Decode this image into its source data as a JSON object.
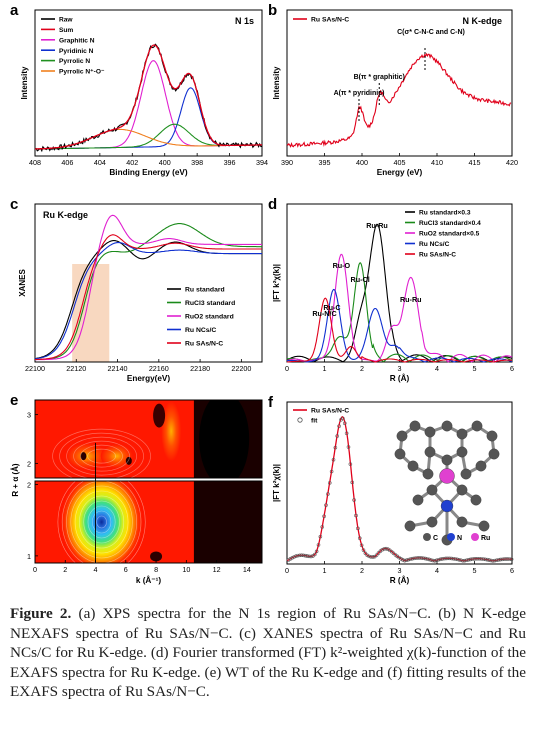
{
  "caption": {
    "label": "Figure 2.",
    "text": "(a) XPS spectra for the N 1s region of Ru SAs/N−C. (b) N K-edge NEXAFS spectra of Ru SAs/N−C. (c) XANES spectra of Ru SAs/N−C and Ru NCs/C for Ru K-edge. (d) Fourier transformed (FT) k²-weighted χ(k)-function of the EXAFS spectra for Ru K-edge. (e) WT of the Ru K-edge and (f) fitting results of the EXAFS spectra of Ru SAs/N−C."
  },
  "chart_data": [
    {
      "panel": "a",
      "type": "line",
      "title": "N 1s",
      "xlabel": "Binding Energy (eV)",
      "ylabel": "Intensity",
      "xlim": [
        408,
        394
      ],
      "xticks": [
        408,
        406,
        404,
        402,
        400,
        398,
        396,
        394
      ],
      "legend_position": "top-left",
      "series": [
        {
          "name": "Raw",
          "color": "#000000"
        },
        {
          "name": "Sum",
          "color": "#e0001a"
        },
        {
          "name": "Graphitic N",
          "color": "#e020d0",
          "center": 400.7
        },
        {
          "name": "Pyridinic N",
          "color": "#1030d0",
          "center": 398.4
        },
        {
          "name": "Pyrrolic N",
          "color": "#209020",
          "center": 399.4
        },
        {
          "name": "Pyrrolic N⁺-O⁻",
          "color": "#f08020",
          "center": 402.8
        }
      ]
    },
    {
      "panel": "b",
      "type": "line",
      "title": "N K-edge",
      "xlabel": "Energy (eV)",
      "ylabel": "Intensity",
      "xlim": [
        390,
        420
      ],
      "xticks": [
        390,
        395,
        400,
        405,
        410,
        415,
        420
      ],
      "legend_position": "top-left",
      "series": [
        {
          "name": "Ru SAs/N-C",
          "color": "#e0001a"
        }
      ],
      "annotations": [
        {
          "text": "A(π * pyridinic)",
          "x": 399.6
        },
        {
          "text": "B(π * graphitic)",
          "x": 402.3
        },
        {
          "text": "C(σ* C-N-C and C-N)",
          "x": 408.4
        }
      ]
    },
    {
      "panel": "c",
      "type": "line",
      "title": "Ru  K-edge",
      "xlabel": "Energy(eV)",
      "ylabel": "XANES",
      "xlim": [
        22100,
        22210
      ],
      "xticks": [
        22100,
        22120,
        22140,
        22160,
        22180,
        22200
      ],
      "highlight_range": [
        22118,
        22136
      ],
      "legend_position": "bottom-right",
      "series": [
        {
          "name": "Ru standard",
          "color": "#000000",
          "e0": 22118
        },
        {
          "name": "RuCl3 standard",
          "color": "#1a8a1a",
          "e0": 22124
        },
        {
          "name": "RuO2 standard",
          "color": "#e020d0",
          "e0": 22126
        },
        {
          "name": "Ru NCs/C",
          "color": "#1030d0",
          "e0": 22119
        },
        {
          "name": "Ru SAs/N-C",
          "color": "#e0001a",
          "e0": 22123
        }
      ]
    },
    {
      "panel": "d",
      "type": "line",
      "xlabel": "R (Å)",
      "ylabel": "|FT k²χ(k)|",
      "xlim": [
        0,
        6
      ],
      "xticks": [
        0,
        1,
        2,
        3,
        4,
        5,
        6
      ],
      "legend_position": "top-right",
      "series": [
        {
          "name": "Ru standard×0.3",
          "color": "#000000"
        },
        {
          "name": "RuCl3 standard×0.4",
          "color": "#1a8a1a"
        },
        {
          "name": "RuO2 standard×0.5",
          "color": "#e020d0"
        },
        {
          "name": "Ru NCs/C",
          "color": "#1030d0"
        },
        {
          "name": "Ru SAs/N-C",
          "color": "#e0001a"
        }
      ],
      "annotations": [
        {
          "text": "Ru-Ru",
          "x": 2.4
        },
        {
          "text": "Ru-O",
          "x": 1.45
        },
        {
          "text": "Ru-Cl",
          "x": 1.95
        },
        {
          "text": "Ru-Ru",
          "x": 3.3
        },
        {
          "text": "Ru-C",
          "x": 1.2
        },
        {
          "text": "Ru-N/C",
          "x": 1.0
        }
      ]
    },
    {
      "panel": "e",
      "type": "heatmap",
      "xlabel": "k (Å⁻¹)",
      "ylabel": "R + α (Å)",
      "xlim": [
        0,
        15
      ],
      "xticks": [
        0,
        2,
        4,
        6,
        8,
        10,
        12,
        14
      ],
      "top_yticks": [
        2,
        3
      ],
      "bottom_yticks": [
        1,
        2
      ],
      "marker_k": 4
    },
    {
      "panel": "f",
      "type": "line",
      "xlabel": "R (Å)",
      "ylabel": "|FT k²χ(k)|",
      "xlim": [
        0,
        6
      ],
      "xticks": [
        0,
        1,
        2,
        3,
        4,
        5,
        6
      ],
      "legend_position": "top-left",
      "series": [
        {
          "name": "Ru SAs/N-C",
          "color": "#e0001a"
        },
        {
          "name": "fit",
          "color": "#555555"
        }
      ],
      "peak_r": 1.5,
      "inset_legend": [
        {
          "name": "C",
          "color": "#555555"
        },
        {
          "name": "N",
          "color": "#2040d0"
        },
        {
          "name": "Ru",
          "color": "#e040d0"
        }
      ]
    }
  ]
}
